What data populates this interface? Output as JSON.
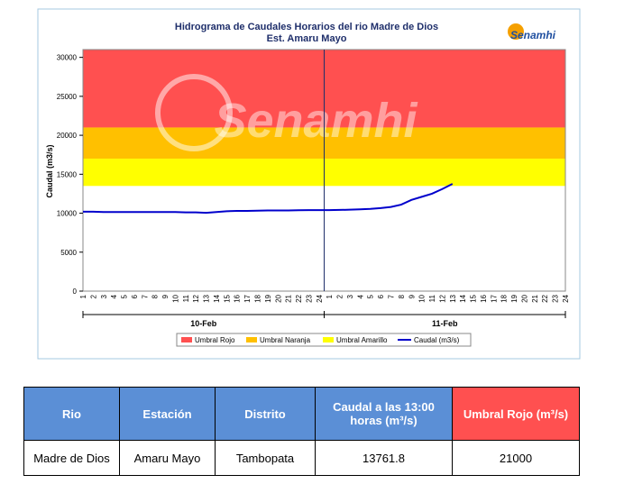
{
  "chart_data": {
    "type": "line",
    "title": "Hidrograma de Caudales Horarios del rio Madre de Dios",
    "subtitle": "Est. Amaru Mayo",
    "logo": "Senamhi",
    "watermark": "Senamhi",
    "y_label": "Caudal  (m3/s)",
    "groups": [
      "10-Feb",
      "11-Feb"
    ],
    "categories": [
      "1",
      "2",
      "3",
      "4",
      "5",
      "6",
      "7",
      "8",
      "9",
      "10",
      "11",
      "12",
      "13",
      "14",
      "15",
      "16",
      "17",
      "18",
      "19",
      "20",
      "21",
      "22",
      "23",
      "24",
      "1",
      "2",
      "3",
      "4",
      "5",
      "6",
      "7",
      "8",
      "9",
      "10",
      "11",
      "12",
      "13",
      "14",
      "15",
      "16",
      "17",
      "18",
      "19",
      "20",
      "21",
      "22",
      "23",
      "24"
    ],
    "bands": [
      {
        "name": "Umbral Rojo",
        "color": "#ff5050",
        "value": 21000
      },
      {
        "name": "Umbral Naranja",
        "color": "#ffc000",
        "value": 17000
      },
      {
        "name": "Umbral Amarillo",
        "color": "#ffff00",
        "value": 13500
      }
    ],
    "series": [
      {
        "name": "Caudal (m3/s)",
        "color": "#0000cc",
        "values": [
          10200,
          10200,
          10150,
          10150,
          10150,
          10150,
          10150,
          10150,
          10150,
          10150,
          10100,
          10100,
          10050,
          10150,
          10250,
          10300,
          10300,
          10330,
          10350,
          10350,
          10350,
          10380,
          10400,
          10400,
          10400,
          10420,
          10450,
          10500,
          10550,
          10650,
          10800,
          11100,
          11700,
          12100,
          12500,
          13100,
          13761.8,
          null,
          null,
          null,
          null,
          null,
          null,
          null,
          null,
          null,
          null,
          null
        ]
      }
    ],
    "ylim": [
      0,
      31000
    ],
    "yticks": [
      0,
      5000,
      10000,
      15000,
      20000,
      25000,
      30000
    ]
  },
  "table": {
    "header": [
      "Rio",
      "Estación",
      "Distrito",
      "Caudal a las 13:00 horas (m³/s)",
      "Umbral Rojo (m³/s)"
    ],
    "rows": [
      [
        "Madre de Dios",
        "Amaru Mayo",
        "Tambopata",
        "13761.8",
        "21000"
      ]
    ]
  }
}
